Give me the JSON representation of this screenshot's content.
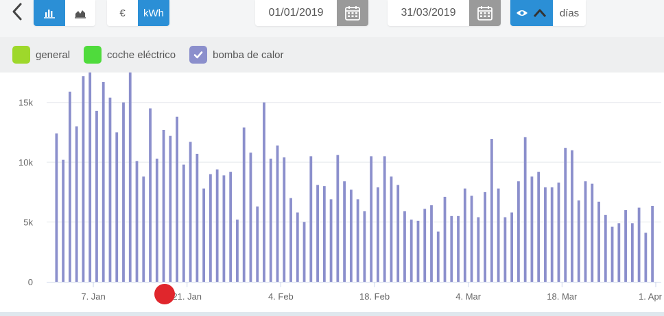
{
  "toolbar": {
    "chart_types": [
      {
        "icon": "bar-chart-icon",
        "active": true
      },
      {
        "icon": "area-chart-icon",
        "active": false
      }
    ],
    "units": [
      {
        "label": "€",
        "active": false
      },
      {
        "label": "kWh",
        "active": true
      }
    ],
    "start_date": "01/01/2019",
    "end_date": "31/03/2019",
    "period_label": "días"
  },
  "legend": [
    {
      "label": "general",
      "color": "#9ed82b",
      "checked": false
    },
    {
      "label": "coche eléctrico",
      "color": "#4fdb3c",
      "checked": false
    },
    {
      "label": "bomba de calor",
      "color": "#8b8fcc",
      "checked": true
    }
  ],
  "colors": {
    "accent": "#2b8fd6",
    "bar": "#8b8fcc",
    "marker": "#e0262c"
  },
  "chart_data": {
    "type": "bar",
    "series": [
      {
        "name": "bomba de calor",
        "values": [
          12400,
          10200,
          15900,
          13000,
          17200,
          17500,
          14300,
          16700,
          15400,
          12500,
          15000,
          17500,
          10100,
          8800,
          14500,
          10300,
          12700,
          12200,
          13800,
          9800,
          11700,
          10700,
          7800,
          9000,
          9400,
          8900,
          9200,
          5200,
          12900,
          10800,
          6300,
          15000,
          10300,
          11400,
          10400,
          7000,
          5800,
          5000,
          10500,
          8100,
          8000,
          6900,
          10600,
          8400,
          7700,
          6900,
          5900,
          10500,
          7900,
          10500,
          8800,
          8100,
          5900,
          5200,
          5100,
          6100,
          6400,
          4200,
          7100,
          5500,
          5500,
          7800,
          7200,
          5400,
          7500,
          11950,
          7800,
          5400,
          5800,
          8400,
          12100,
          8800,
          9200,
          7900,
          7900,
          8300,
          11200,
          11000,
          6800,
          8400,
          8200,
          6700,
          5600,
          4600,
          4900,
          6000,
          4900,
          6200,
          4100,
          6350
        ]
      }
    ],
    "x_tick_labels": [
      "7. Jan",
      "21. Jan",
      "4. Feb",
      "18. Feb",
      "4. Mar",
      "18. Mar",
      "1. Apr"
    ],
    "y_tick_labels": [
      "0",
      "5k",
      "10k",
      "15k"
    ],
    "ylim": [
      0,
      17500
    ],
    "x_range": [
      "2019-01-01",
      "2019-03-31"
    ],
    "grid": true
  }
}
